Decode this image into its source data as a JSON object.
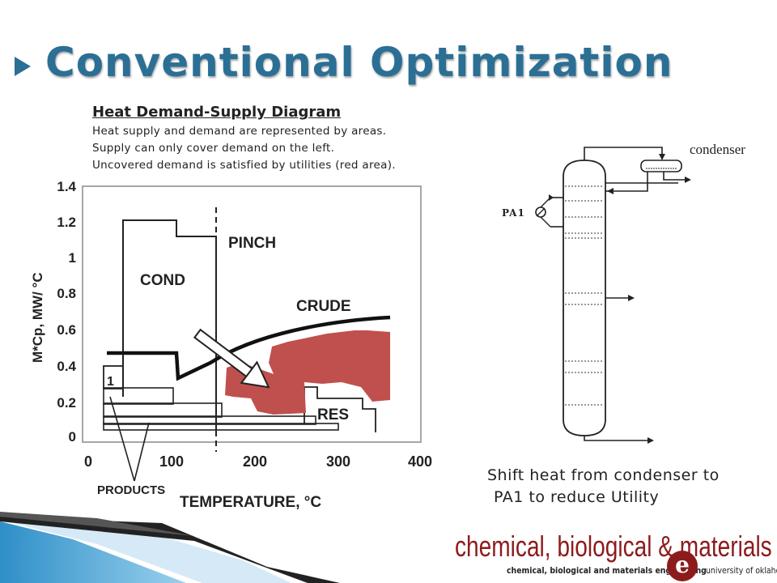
{
  "slide": {
    "title": "Conventional Optimization",
    "subheading": "Heat Demand-Supply Diagram",
    "description": [
      "Heat supply and demand are represented by areas.",
      "Supply can only cover demand on the left.",
      "Uncovered demand is satisfied by utilities (red area)."
    ],
    "caption_line1": "Shift heat from condenser to",
    "caption_line2": "PA1 to reduce Utility"
  },
  "chart": {
    "y_ticks": [
      "0",
      "0.2",
      "0.4",
      "0.6",
      "0.8",
      "1",
      "1.2",
      "1.4"
    ],
    "x_ticks": [
      "0",
      "100",
      "200",
      "300",
      "400"
    ],
    "ylabel": "M*Cp, MW/ °C",
    "xlabel": "TEMPERATURE, °C",
    "labels": {
      "pinch": "PINCH",
      "cond": "COND",
      "crude": "CRUDE",
      "res": "RES",
      "one": "1",
      "products": "PRODUCTS"
    },
    "colors": {
      "utility": "#c0504d"
    }
  },
  "column": {
    "condenser_label": "condenser",
    "pa1_label": "PA1"
  },
  "logo": {
    "main": "chemical, biological & materials",
    "sub": "chemical, biological and materials engineering",
    "university": "university of oklahoma",
    "mark": "e"
  }
}
